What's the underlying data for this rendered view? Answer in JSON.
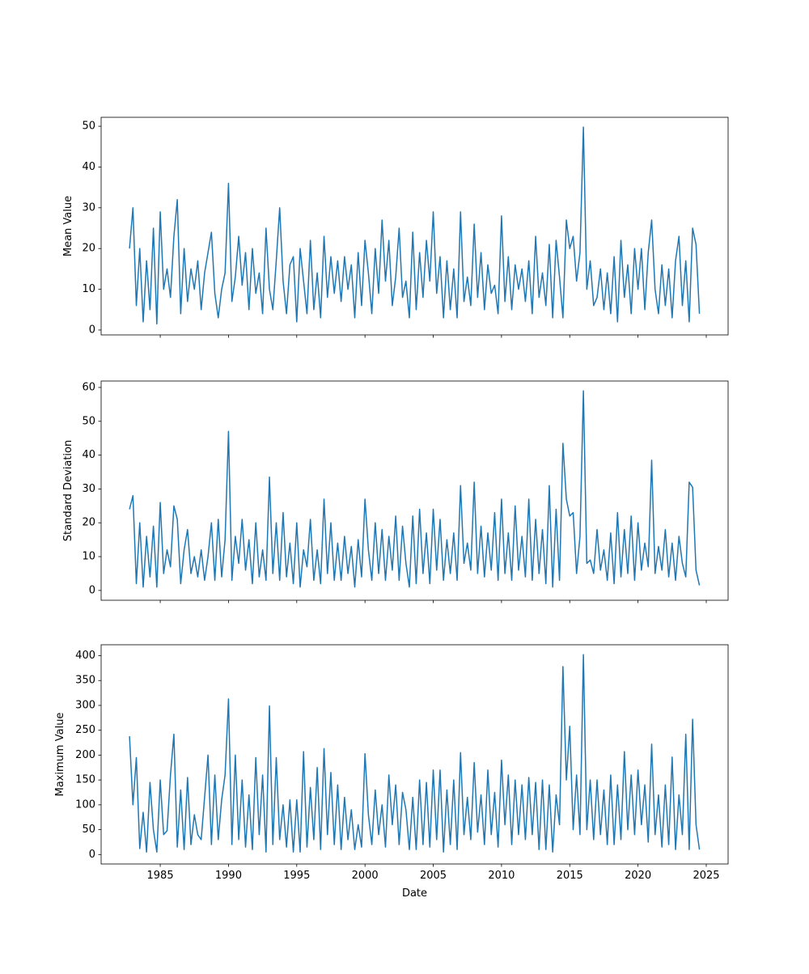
{
  "chart_data": [
    {
      "type": "line",
      "ylabel": "Mean Value",
      "color": "#1f77b4",
      "show_xtick_labels": false,
      "xlim": [
        1980.67,
        2026.6
      ],
      "xticks": [
        1985,
        1990,
        1995,
        2000,
        2005,
        2010,
        2015,
        2020,
        2025
      ],
      "ylim": [
        -1.2,
        52.2
      ],
      "yticks": [
        0,
        10,
        20,
        30,
        40,
        50
      ],
      "x": [
        1982.75,
        1983,
        1983.25,
        1983.5,
        1983.75,
        1984,
        1984.25,
        1984.5,
        1984.75,
        1985,
        1985.25,
        1985.5,
        1985.75,
        1986,
        1986.25,
        1986.5,
        1986.75,
        1987,
        1987.25,
        1987.5,
        1987.75,
        1988,
        1988.25,
        1988.5,
        1988.75,
        1989,
        1989.25,
        1989.5,
        1989.75,
        1990,
        1990.25,
        1990.5,
        1990.75,
        1991,
        1991.25,
        1991.5,
        1991.75,
        1992,
        1992.25,
        1992.5,
        1992.75,
        1993,
        1993.25,
        1993.5,
        1993.75,
        1994,
        1994.25,
        1994.5,
        1994.75,
        1995,
        1995.25,
        1995.5,
        1995.75,
        1996,
        1996.25,
        1996.5,
        1996.75,
        1997,
        1997.25,
        1997.5,
        1997.75,
        1998,
        1998.25,
        1998.5,
        1998.75,
        1999,
        1999.25,
        1999.5,
        1999.75,
        2000,
        2000.25,
        2000.5,
        2000.75,
        2001,
        2001.25,
        2001.5,
        2001.75,
        2002,
        2002.25,
        2002.5,
        2002.75,
        2003,
        2003.25,
        2003.5,
        2003.75,
        2004,
        2004.25,
        2004.5,
        2004.75,
        2005,
        2005.25,
        2005.5,
        2005.75,
        2006,
        2006.25,
        2006.5,
        2006.75,
        2007,
        2007.25,
        2007.5,
        2007.75,
        2008,
        2008.25,
        2008.5,
        2008.75,
        2009,
        2009.25,
        2009.5,
        2009.75,
        2010,
        2010.25,
        2010.5,
        2010.75,
        2011,
        2011.25,
        2011.5,
        2011.75,
        2012,
        2012.25,
        2012.5,
        2012.75,
        2013,
        2013.25,
        2013.5,
        2013.75,
        2014,
        2014.25,
        2014.5,
        2014.75,
        2015,
        2015.25,
        2015.5,
        2015.75,
        2016,
        2016.25,
        2016.5,
        2016.75,
        2017,
        2017.25,
        2017.5,
        2017.75,
        2018,
        2018.25,
        2018.5,
        2018.75,
        2019,
        2019.25,
        2019.5,
        2019.75,
        2020,
        2020.25,
        2020.5,
        2020.75,
        2021,
        2021.25,
        2021.5,
        2021.75,
        2022,
        2022.25,
        2022.5,
        2022.75,
        2023,
        2023.25,
        2023.5,
        2023.75,
        2024,
        2024.25,
        2024.5
      ],
      "values": [
        20,
        30,
        6,
        20,
        2,
        17,
        5,
        25,
        1.5,
        29,
        10,
        15,
        8,
        23,
        32,
        4,
        20,
        7,
        15,
        10,
        17,
        5,
        14,
        19,
        24,
        9,
        3,
        10,
        14,
        36,
        7,
        13,
        23,
        11,
        19,
        5,
        20,
        9,
        14,
        4,
        25,
        10,
        5,
        17,
        30,
        12,
        4,
        16,
        18,
        2,
        20,
        12,
        4,
        22,
        5,
        14,
        3,
        23,
        8,
        18,
        9,
        17,
        7,
        18,
        10,
        16,
        3,
        19,
        6,
        22,
        14,
        4,
        20,
        9,
        27,
        12,
        22,
        6,
        13,
        25,
        8,
        12,
        3,
        24,
        5,
        19,
        8,
        22,
        12,
        29,
        9,
        18,
        3,
        17,
        5,
        15,
        3,
        29,
        7,
        13,
        6,
        26,
        8,
        19,
        5,
        16,
        9,
        11,
        4,
        28,
        7,
        18,
        5,
        16,
        10,
        15,
        7,
        17,
        4,
        23,
        8,
        14,
        6,
        21,
        3,
        22,
        13,
        3,
        27,
        20,
        23,
        12,
        19,
        49.8,
        10,
        17,
        6,
        8,
        15,
        5,
        14,
        4,
        18,
        2,
        22,
        8,
        16,
        4,
        20,
        10,
        20,
        5,
        19,
        27,
        10,
        4,
        16,
        6,
        15,
        3,
        17,
        23,
        6,
        17,
        2,
        25,
        21,
        4
      ]
    },
    {
      "type": "line",
      "ylabel": "Standard Deviation",
      "color": "#1f77b4",
      "show_xtick_labels": false,
      "xlim": [
        1980.67,
        2026.6
      ],
      "xticks": [
        1985,
        1990,
        1995,
        2000,
        2005,
        2010,
        2015,
        2020,
        2025
      ],
      "ylim": [
        -2.9,
        61.9
      ],
      "yticks": [
        0,
        10,
        20,
        30,
        40,
        50,
        60
      ],
      "x": [
        1982.75,
        1983,
        1983.25,
        1983.5,
        1983.75,
        1984,
        1984.25,
        1984.5,
        1984.75,
        1985,
        1985.25,
        1985.5,
        1985.75,
        1986,
        1986.25,
        1986.5,
        1986.75,
        1987,
        1987.25,
        1987.5,
        1987.75,
        1988,
        1988.25,
        1988.5,
        1988.75,
        1989,
        1989.25,
        1989.5,
        1989.75,
        1990,
        1990.25,
        1990.5,
        1990.75,
        1991,
        1991.25,
        1991.5,
        1991.75,
        1992,
        1992.25,
        1992.5,
        1992.75,
        1993,
        1993.25,
        1993.5,
        1993.75,
        1994,
        1994.25,
        1994.5,
        1994.75,
        1995,
        1995.25,
        1995.5,
        1995.75,
        1996,
        1996.25,
        1996.5,
        1996.75,
        1997,
        1997.25,
        1997.5,
        1997.75,
        1998,
        1998.25,
        1998.5,
        1998.75,
        1999,
        1999.25,
        1999.5,
        1999.75,
        2000,
        2000.25,
        2000.5,
        2000.75,
        2001,
        2001.25,
        2001.5,
        2001.75,
        2002,
        2002.25,
        2002.5,
        2002.75,
        2003,
        2003.25,
        2003.5,
        2003.75,
        2004,
        2004.25,
        2004.5,
        2004.75,
        2005,
        2005.25,
        2005.5,
        2005.75,
        2006,
        2006.25,
        2006.5,
        2006.75,
        2007,
        2007.25,
        2007.5,
        2007.75,
        2008,
        2008.25,
        2008.5,
        2008.75,
        2009,
        2009.25,
        2009.5,
        2009.75,
        2010,
        2010.25,
        2010.5,
        2010.75,
        2011,
        2011.25,
        2011.5,
        2011.75,
        2012,
        2012.25,
        2012.5,
        2012.75,
        2013,
        2013.25,
        2013.5,
        2013.75,
        2014,
        2014.25,
        2014.5,
        2014.75,
        2015,
        2015.25,
        2015.5,
        2015.75,
        2016,
        2016.25,
        2016.5,
        2016.75,
        2017,
        2017.25,
        2017.5,
        2017.75,
        2018,
        2018.25,
        2018.5,
        2018.75,
        2019,
        2019.25,
        2019.5,
        2019.75,
        2020,
        2020.25,
        2020.5,
        2020.75,
        2021,
        2021.25,
        2021.5,
        2021.75,
        2022,
        2022.25,
        2022.5,
        2022.75,
        2023,
        2023.25,
        2023.5,
        2023.75,
        2024,
        2024.25,
        2024.5
      ],
      "values": [
        24,
        28,
        2,
        20,
        1,
        16,
        4,
        19,
        1,
        26,
        5,
        12,
        7,
        25,
        21,
        2,
        12,
        18,
        5,
        10,
        4,
        12,
        3,
        10,
        20,
        3,
        21,
        4,
        15,
        47,
        3,
        16,
        8,
        21,
        6,
        15,
        2,
        20,
        4,
        12,
        3,
        33.5,
        5,
        20,
        3,
        23,
        4,
        14,
        2,
        20,
        1,
        12,
        7,
        21,
        3,
        12,
        2,
        27,
        5,
        20,
        3,
        14,
        3,
        16,
        5,
        13,
        1,
        15,
        4,
        27,
        12,
        3,
        20,
        5,
        18,
        3,
        16,
        6,
        22,
        3,
        19,
        8,
        1,
        22,
        2,
        24,
        5,
        17,
        2,
        24,
        6,
        21,
        3,
        15,
        5,
        17,
        3,
        31,
        8,
        14,
        6,
        32,
        5,
        19,
        4,
        17,
        6,
        23,
        3,
        27,
        5,
        17,
        3,
        25,
        6,
        16,
        4,
        27,
        3,
        21,
        5,
        18,
        2,
        31,
        1,
        24,
        3,
        43.5,
        27,
        22,
        23,
        5,
        16,
        59,
        8,
        9,
        5,
        18,
        6,
        12,
        3,
        17,
        2,
        23,
        4,
        18,
        5,
        22,
        3,
        20,
        6,
        14,
        7,
        38.5,
        5,
        13,
        6,
        18,
        4,
        14,
        3,
        16,
        8,
        4,
        32,
        30.5,
        6,
        1.5
      ]
    },
    {
      "type": "line",
      "ylabel": "Maximum Value",
      "xlabel": "Date",
      "color": "#1f77b4",
      "show_xtick_labels": true,
      "xlim": [
        1980.67,
        2026.6
      ],
      "xticks": [
        1985,
        1990,
        1995,
        2000,
        2005,
        2010,
        2015,
        2020,
        2025
      ],
      "ylim": [
        -19,
        422
      ],
      "yticks": [
        0,
        50,
        100,
        150,
        200,
        250,
        300,
        350,
        400
      ],
      "x": [
        1982.75,
        1983,
        1983.25,
        1983.5,
        1983.75,
        1984,
        1984.25,
        1984.5,
        1984.75,
        1985,
        1985.25,
        1985.5,
        1985.75,
        1986,
        1986.25,
        1986.5,
        1986.75,
        1987,
        1987.25,
        1987.5,
        1987.75,
        1988,
        1988.25,
        1988.5,
        1988.75,
        1989,
        1989.25,
        1989.5,
        1989.75,
        1990,
        1990.25,
        1990.5,
        1990.75,
        1991,
        1991.25,
        1991.5,
        1991.75,
        1992,
        1992.25,
        1992.5,
        1992.75,
        1993,
        1993.25,
        1993.5,
        1993.75,
        1994,
        1994.25,
        1994.5,
        1994.75,
        1995,
        1995.25,
        1995.5,
        1995.75,
        1996,
        1996.25,
        1996.5,
        1996.75,
        1997,
        1997.25,
        1997.5,
        1997.75,
        1998,
        1998.25,
        1998.5,
        1998.75,
        1999,
        1999.25,
        1999.5,
        1999.75,
        2000,
        2000.25,
        2000.5,
        2000.75,
        2001,
        2001.25,
        2001.5,
        2001.75,
        2002,
        2002.25,
        2002.5,
        2002.75,
        2003,
        2003.25,
        2003.5,
        2003.75,
        2004,
        2004.25,
        2004.5,
        2004.75,
        2005,
        2005.25,
        2005.5,
        2005.75,
        2006,
        2006.25,
        2006.5,
        2006.75,
        2007,
        2007.25,
        2007.5,
        2007.75,
        2008,
        2008.25,
        2008.5,
        2008.75,
        2009,
        2009.25,
        2009.5,
        2009.75,
        2010,
        2010.25,
        2010.5,
        2010.75,
        2011,
        2011.25,
        2011.5,
        2011.75,
        2012,
        2012.25,
        2012.5,
        2012.75,
        2013,
        2013.25,
        2013.5,
        2013.75,
        2014,
        2014.25,
        2014.5,
        2014.75,
        2015,
        2015.25,
        2015.5,
        2015.75,
        2016,
        2016.25,
        2016.5,
        2016.75,
        2017,
        2017.25,
        2017.5,
        2017.75,
        2018,
        2018.25,
        2018.5,
        2018.75,
        2019,
        2019.25,
        2019.5,
        2019.75,
        2020,
        2020.25,
        2020.5,
        2020.75,
        2021,
        2021.25,
        2021.5,
        2021.75,
        2022,
        2022.25,
        2022.5,
        2022.75,
        2023,
        2023.25,
        2023.5,
        2023.75,
        2024,
        2024.25,
        2024.5
      ],
      "values": [
        238,
        100,
        195,
        12,
        85,
        5,
        145,
        50,
        5,
        150,
        40,
        48,
        160,
        242,
        15,
        130,
        10,
        155,
        20,
        80,
        40,
        30,
        115,
        200,
        20,
        160,
        30,
        110,
        160,
        313,
        20,
        200,
        30,
        150,
        15,
        120,
        10,
        195,
        40,
        160,
        5,
        299,
        20,
        195,
        30,
        100,
        15,
        110,
        5,
        110,
        5,
        207,
        15,
        135,
        30,
        175,
        10,
        213,
        40,
        165,
        20,
        140,
        10,
        115,
        30,
        90,
        10,
        60,
        15,
        203,
        80,
        20,
        130,
        40,
        100,
        15,
        160,
        60,
        140,
        20,
        125,
        90,
        10,
        115,
        10,
        150,
        20,
        145,
        15,
        170,
        30,
        170,
        5,
        130,
        20,
        150,
        10,
        205,
        40,
        115,
        30,
        185,
        45,
        120,
        20,
        170,
        40,
        125,
        15,
        190,
        60,
        160,
        20,
        150,
        40,
        140,
        30,
        155,
        40,
        145,
        10,
        150,
        10,
        140,
        5,
        120,
        60,
        378,
        150,
        258,
        50,
        160,
        40,
        402,
        50,
        150,
        30,
        150,
        40,
        130,
        20,
        160,
        20,
        140,
        30,
        207,
        50,
        160,
        40,
        170,
        60,
        140,
        25,
        222,
        40,
        120,
        15,
        140,
        20,
        196,
        10,
        120,
        40,
        242,
        10,
        272,
        60,
        10
      ]
    }
  ]
}
